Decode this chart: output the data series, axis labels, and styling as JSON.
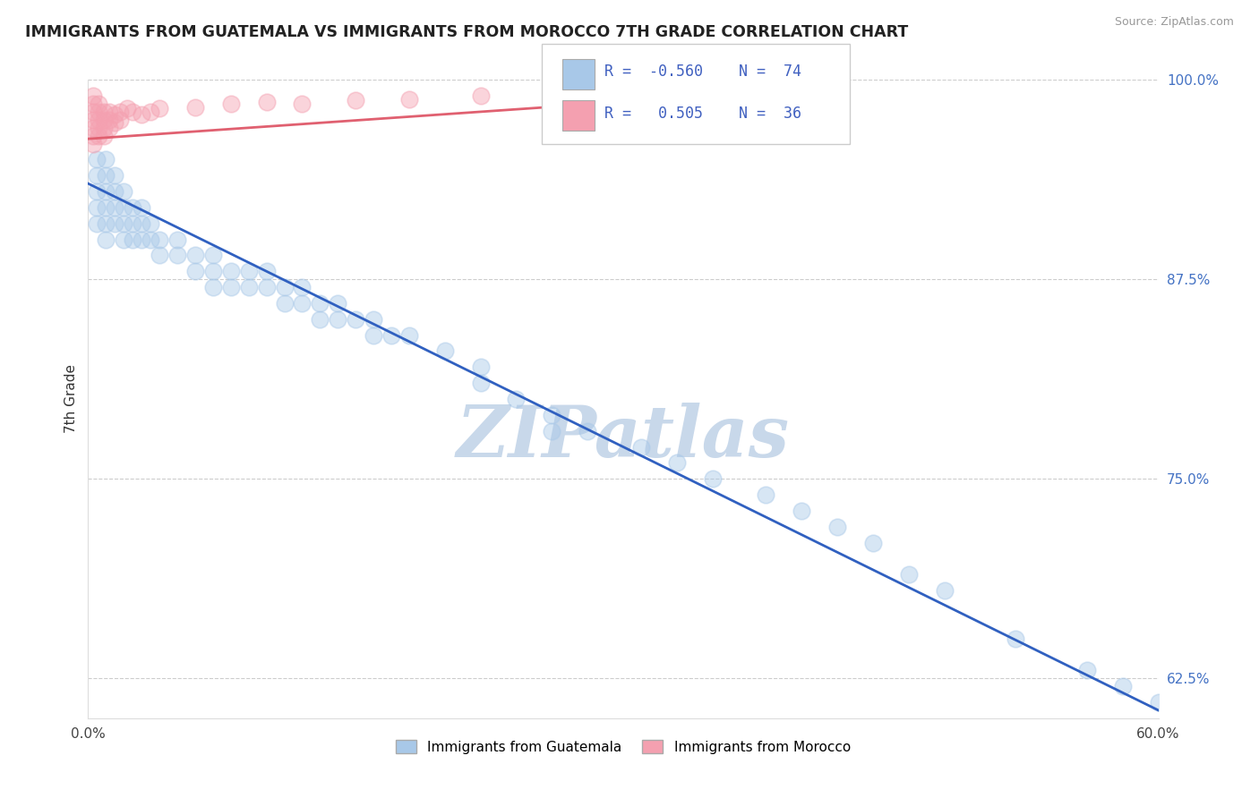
{
  "title": "IMMIGRANTS FROM GUATEMALA VS IMMIGRANTS FROM MOROCCO 7TH GRADE CORRELATION CHART",
  "source": "Source: ZipAtlas.com",
  "ylabel": "7th Grade",
  "xlim": [
    0.0,
    0.6
  ],
  "ylim": [
    0.6,
    1.0
  ],
  "xticklabels_pos": [
    0.0,
    0.6
  ],
  "xticklabels": [
    "0.0%",
    "60.0%"
  ],
  "ytick_positions": [
    0.625,
    0.75,
    0.875,
    1.0
  ],
  "ytick_labels": [
    "62.5%",
    "75.0%",
    "87.5%",
    "100.0%"
  ],
  "color_blue": "#a8c8e8",
  "color_pink": "#f4a0b0",
  "line_color_blue": "#3060c0",
  "line_color_pink": "#e06070",
  "legend_label1": "Immigrants from Guatemala",
  "legend_label2": "Immigrants from Morocco",
  "watermark": "ZIPatlas",
  "watermark_color": "#c8d8ea",
  "background_color": "#ffffff",
  "grid_color": "#cccccc",
  "guatemala_x": [
    0.005,
    0.005,
    0.005,
    0.005,
    0.005,
    0.01,
    0.01,
    0.01,
    0.01,
    0.01,
    0.01,
    0.015,
    0.015,
    0.015,
    0.015,
    0.02,
    0.02,
    0.02,
    0.02,
    0.025,
    0.025,
    0.025,
    0.03,
    0.03,
    0.03,
    0.035,
    0.035,
    0.04,
    0.04,
    0.05,
    0.05,
    0.06,
    0.06,
    0.07,
    0.07,
    0.07,
    0.08,
    0.08,
    0.09,
    0.09,
    0.1,
    0.1,
    0.11,
    0.11,
    0.12,
    0.12,
    0.13,
    0.13,
    0.14,
    0.14,
    0.15,
    0.16,
    0.16,
    0.17,
    0.18,
    0.2,
    0.22,
    0.22,
    0.24,
    0.26,
    0.26,
    0.28,
    0.31,
    0.33,
    0.35,
    0.38,
    0.4,
    0.42,
    0.44,
    0.46,
    0.48,
    0.52,
    0.56,
    0.58,
    0.6
  ],
  "guatemala_y": [
    0.95,
    0.94,
    0.93,
    0.92,
    0.91,
    0.95,
    0.94,
    0.93,
    0.92,
    0.91,
    0.9,
    0.94,
    0.93,
    0.92,
    0.91,
    0.93,
    0.92,
    0.91,
    0.9,
    0.92,
    0.91,
    0.9,
    0.92,
    0.91,
    0.9,
    0.91,
    0.9,
    0.9,
    0.89,
    0.9,
    0.89,
    0.89,
    0.88,
    0.89,
    0.88,
    0.87,
    0.88,
    0.87,
    0.88,
    0.87,
    0.88,
    0.87,
    0.87,
    0.86,
    0.87,
    0.86,
    0.86,
    0.85,
    0.86,
    0.85,
    0.85,
    0.85,
    0.84,
    0.84,
    0.84,
    0.83,
    0.82,
    0.81,
    0.8,
    0.79,
    0.78,
    0.78,
    0.77,
    0.76,
    0.75,
    0.74,
    0.73,
    0.72,
    0.71,
    0.69,
    0.68,
    0.65,
    0.63,
    0.62,
    0.61
  ],
  "morocco_x": [
    0.003,
    0.003,
    0.003,
    0.003,
    0.003,
    0.003,
    0.003,
    0.006,
    0.006,
    0.006,
    0.006,
    0.006,
    0.009,
    0.009,
    0.009,
    0.009,
    0.012,
    0.012,
    0.012,
    0.015,
    0.015,
    0.018,
    0.018,
    0.022,
    0.025,
    0.03,
    0.035,
    0.04,
    0.06,
    0.08,
    0.1,
    0.12,
    0.15,
    0.18,
    0.22,
    0.26
  ],
  "morocco_y": [
    0.99,
    0.985,
    0.98,
    0.975,
    0.97,
    0.965,
    0.96,
    0.985,
    0.98,
    0.975,
    0.97,
    0.965,
    0.98,
    0.975,
    0.97,
    0.965,
    0.98,
    0.975,
    0.97,
    0.978,
    0.973,
    0.98,
    0.975,
    0.982,
    0.98,
    0.978,
    0.98,
    0.982,
    0.983,
    0.985,
    0.986,
    0.985,
    0.987,
    0.988,
    0.99,
    0.992
  ],
  "blue_line_x": [
    0.0,
    0.6
  ],
  "blue_line_y": [
    0.935,
    0.605
  ],
  "pink_line_x": [
    0.0,
    0.35
  ],
  "pink_line_y": [
    0.963,
    0.99
  ]
}
